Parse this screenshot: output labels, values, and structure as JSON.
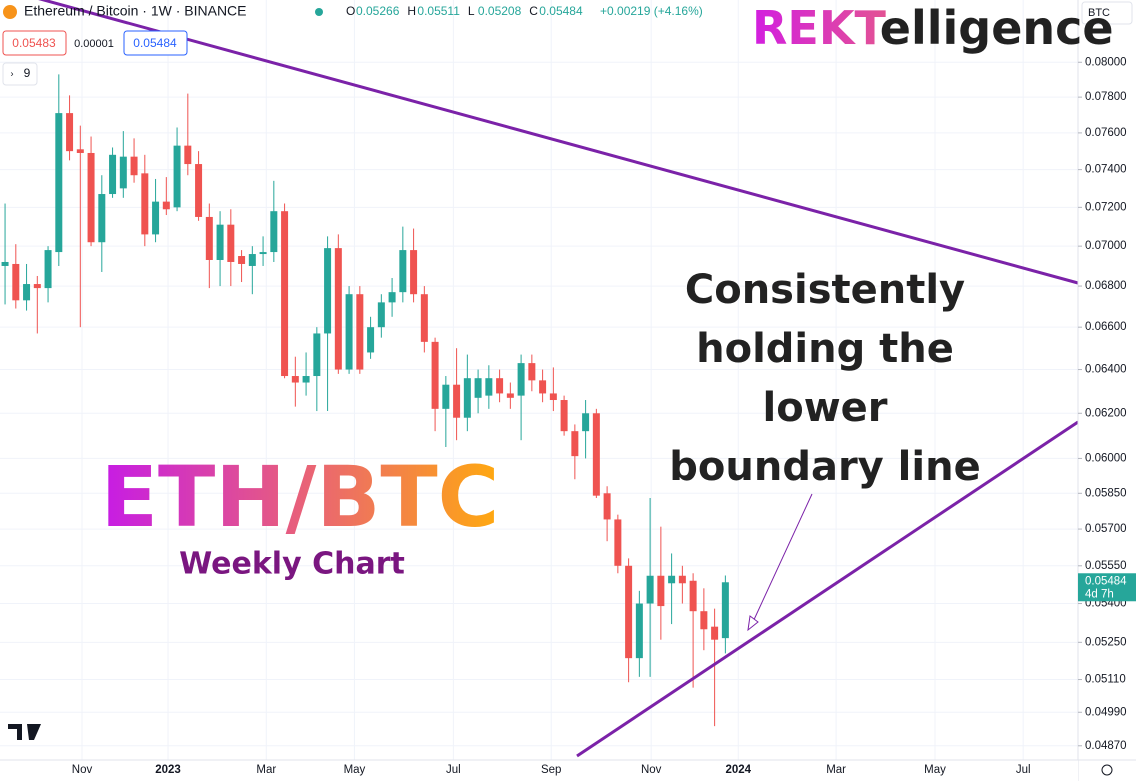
{
  "header": {
    "symbol": "Ethereum / Bitcoin · 1W · BINANCE",
    "ohlc": [
      {
        "label": "O",
        "value": "0.05266"
      },
      {
        "label": "H",
        "value": "0.05511"
      },
      {
        "label": "L",
        "value": "0.05208"
      },
      {
        "label": "C",
        "value": "0.05484"
      }
    ],
    "change": "+0.00219 (+4.16%)",
    "sell": "0.05483",
    "spread": "0.00001",
    "buy": "0.05484",
    "indicator": "9",
    "currency": "BTC"
  },
  "logo": {
    "accent": "REKT",
    "rest": "elligence"
  },
  "chart_data": {
    "type": "candlestick",
    "title": "ETH/BTC",
    "subtitle": "Weekly Chart",
    "annotation": [
      "Consistently",
      "holding the",
      "lower",
      "boundary line"
    ],
    "last_price_label": "0.05484",
    "countdown": "4d 7h",
    "up_color": "#26a69a",
    "down_color": "#ef5350",
    "log_scale": true,
    "grid": true,
    "open": [
      0.069,
      0.0691,
      0.0673,
      0.0681,
      0.0679,
      0.0697,
      0.0771,
      0.0751,
      0.0749,
      0.0702,
      0.0727,
      0.073,
      0.0747,
      0.0738,
      0.0706,
      0.0723,
      0.072,
      0.0753,
      0.0743,
      0.0715,
      0.0693,
      0.0711,
      0.0695,
      0.069,
      0.0696,
      0.0697,
      0.0718,
      0.0637,
      0.0634,
      0.0637,
      0.0657,
      0.0699,
      0.064,
      0.0676,
      0.0648,
      0.066,
      0.0672,
      0.0677,
      0.0698,
      0.0676,
      0.0653,
      0.0622,
      0.0633,
      0.0618,
      0.0627,
      0.0628,
      0.0636,
      0.0629,
      0.0628,
      0.0643,
      0.0635,
      0.0629,
      0.0626,
      0.0612,
      0.0612,
      0.062,
      0.0585,
      0.0574,
      0.0555,
      0.0519,
      0.054,
      0.0551,
      0.0548,
      0.0551,
      0.0549,
      0.0537,
      0.0531,
      0.05266
    ],
    "high": [
      0.0722,
      0.0701,
      0.0691,
      0.0685,
      0.07,
      0.0793,
      0.0781,
      0.0764,
      0.0758,
      0.0737,
      0.0752,
      0.0761,
      0.0757,
      0.0748,
      0.0735,
      0.0736,
      0.0763,
      0.0782,
      0.075,
      0.0722,
      0.0718,
      0.0719,
      0.0698,
      0.07,
      0.0705,
      0.0734,
      0.0722,
      0.0646,
      0.0648,
      0.066,
      0.0705,
      0.0706,
      0.068,
      0.068,
      0.0665,
      0.0676,
      0.0684,
      0.071,
      0.0709,
      0.068,
      0.0655,
      0.0637,
      0.065,
      0.0647,
      0.064,
      0.0642,
      0.064,
      0.0634,
      0.0647,
      0.0647,
      0.064,
      0.0641,
      0.0628,
      0.0615,
      0.0626,
      0.0622,
      0.0588,
      0.0576,
      0.0558,
      0.0545,
      0.0583,
      0.0571,
      0.056,
      0.0555,
      0.0552,
      0.0546,
      0.0538,
      0.05511
    ],
    "low": [
      0.0671,
      0.0669,
      0.0668,
      0.0657,
      0.0672,
      0.069,
      0.0745,
      0.066,
      0.07,
      0.0687,
      0.0725,
      0.0725,
      0.0733,
      0.07,
      0.0702,
      0.0716,
      0.0718,
      0.0737,
      0.0713,
      0.0679,
      0.068,
      0.068,
      0.0682,
      0.0676,
      0.069,
      0.0692,
      0.0636,
      0.0623,
      0.0628,
      0.0621,
      0.0621,
      0.0638,
      0.0638,
      0.0638,
      0.0645,
      0.0655,
      0.0665,
      0.0672,
      0.0672,
      0.0648,
      0.0612,
      0.0605,
      0.0608,
      0.0612,
      0.062,
      0.0622,
      0.0625,
      0.0622,
      0.0608,
      0.063,
      0.0625,
      0.0621,
      0.061,
      0.0591,
      0.06,
      0.0583,
      0.0565,
      0.0552,
      0.051,
      0.0512,
      0.0512,
      0.0526,
      0.0532,
      0.054,
      0.0508,
      0.0522,
      0.0494,
      0.05208
    ],
    "close": [
      0.0692,
      0.0673,
      0.0681,
      0.0679,
      0.0698,
      0.0771,
      0.075,
      0.0749,
      0.0702,
      0.0727,
      0.0748,
      0.0747,
      0.0737,
      0.0706,
      0.0723,
      0.0719,
      0.0753,
      0.0743,
      0.0715,
      0.0693,
      0.0711,
      0.0692,
      0.0691,
      0.0696,
      0.0697,
      0.0718,
      0.0637,
      0.0634,
      0.0637,
      0.0657,
      0.0699,
      0.064,
      0.0676,
      0.064,
      0.066,
      0.0672,
      0.0677,
      0.0698,
      0.0676,
      0.0653,
      0.0622,
      0.0633,
      0.0618,
      0.0636,
      0.0636,
      0.0636,
      0.0629,
      0.0627,
      0.0643,
      0.0635,
      0.0629,
      0.0626,
      0.0612,
      0.0601,
      0.062,
      0.0584,
      0.0574,
      0.0555,
      0.0519,
      0.054,
      0.0551,
      0.0539,
      0.0551,
      0.0548,
      0.0537,
      0.053,
      0.0526,
      0.05484
    ],
    "xlim": [
      -0.47,
      99.8
    ],
    "xticks": [
      {
        "value": 7.16,
        "label": "Nov"
      },
      {
        "value": 15.16,
        "label": "2023"
      },
      {
        "value": 24.3,
        "label": "Mar"
      },
      {
        "value": 32.5,
        "label": "May"
      },
      {
        "value": 41.7,
        "label": "Jul"
      },
      {
        "value": 50.8,
        "label": "Sep"
      },
      {
        "value": 60.1,
        "label": "Nov"
      },
      {
        "value": 68.2,
        "label": "2024"
      },
      {
        "value": 77.3,
        "label": "Mar"
      },
      {
        "value": 86.5,
        "label": "May"
      },
      {
        "value": 94.7,
        "label": "Jul"
      }
    ],
    "ylim": [
      0.0482,
      0.0837
    ],
    "yticks": [
      {
        "value": 0.08,
        "label": "0.08000"
      },
      {
        "value": 0.078,
        "label": "0.07800"
      },
      {
        "value": 0.076,
        "label": "0.07600"
      },
      {
        "value": 0.074,
        "label": "0.07400"
      },
      {
        "value": 0.072,
        "label": "0.07200"
      },
      {
        "value": 0.07,
        "label": "0.07000"
      },
      {
        "value": 0.068,
        "label": "0.06800"
      },
      {
        "value": 0.066,
        "label": "0.06600"
      },
      {
        "value": 0.064,
        "label": "0.06400"
      },
      {
        "value": 0.062,
        "label": "0.06200"
      },
      {
        "value": 0.06,
        "label": "0.06000"
      },
      {
        "value": 0.0585,
        "label": "0.05850"
      },
      {
        "value": 0.057,
        "label": "0.05700"
      },
      {
        "value": 0.0555,
        "label": "0.05550"
      },
      {
        "value": 0.054,
        "label": "0.05400"
      },
      {
        "value": 0.0525,
        "label": "0.05250"
      },
      {
        "value": 0.0511,
        "label": "0.05110"
      },
      {
        "value": 0.0499,
        "label": "0.04990"
      },
      {
        "value": 0.0487,
        "label": "0.04870"
      }
    ]
  }
}
